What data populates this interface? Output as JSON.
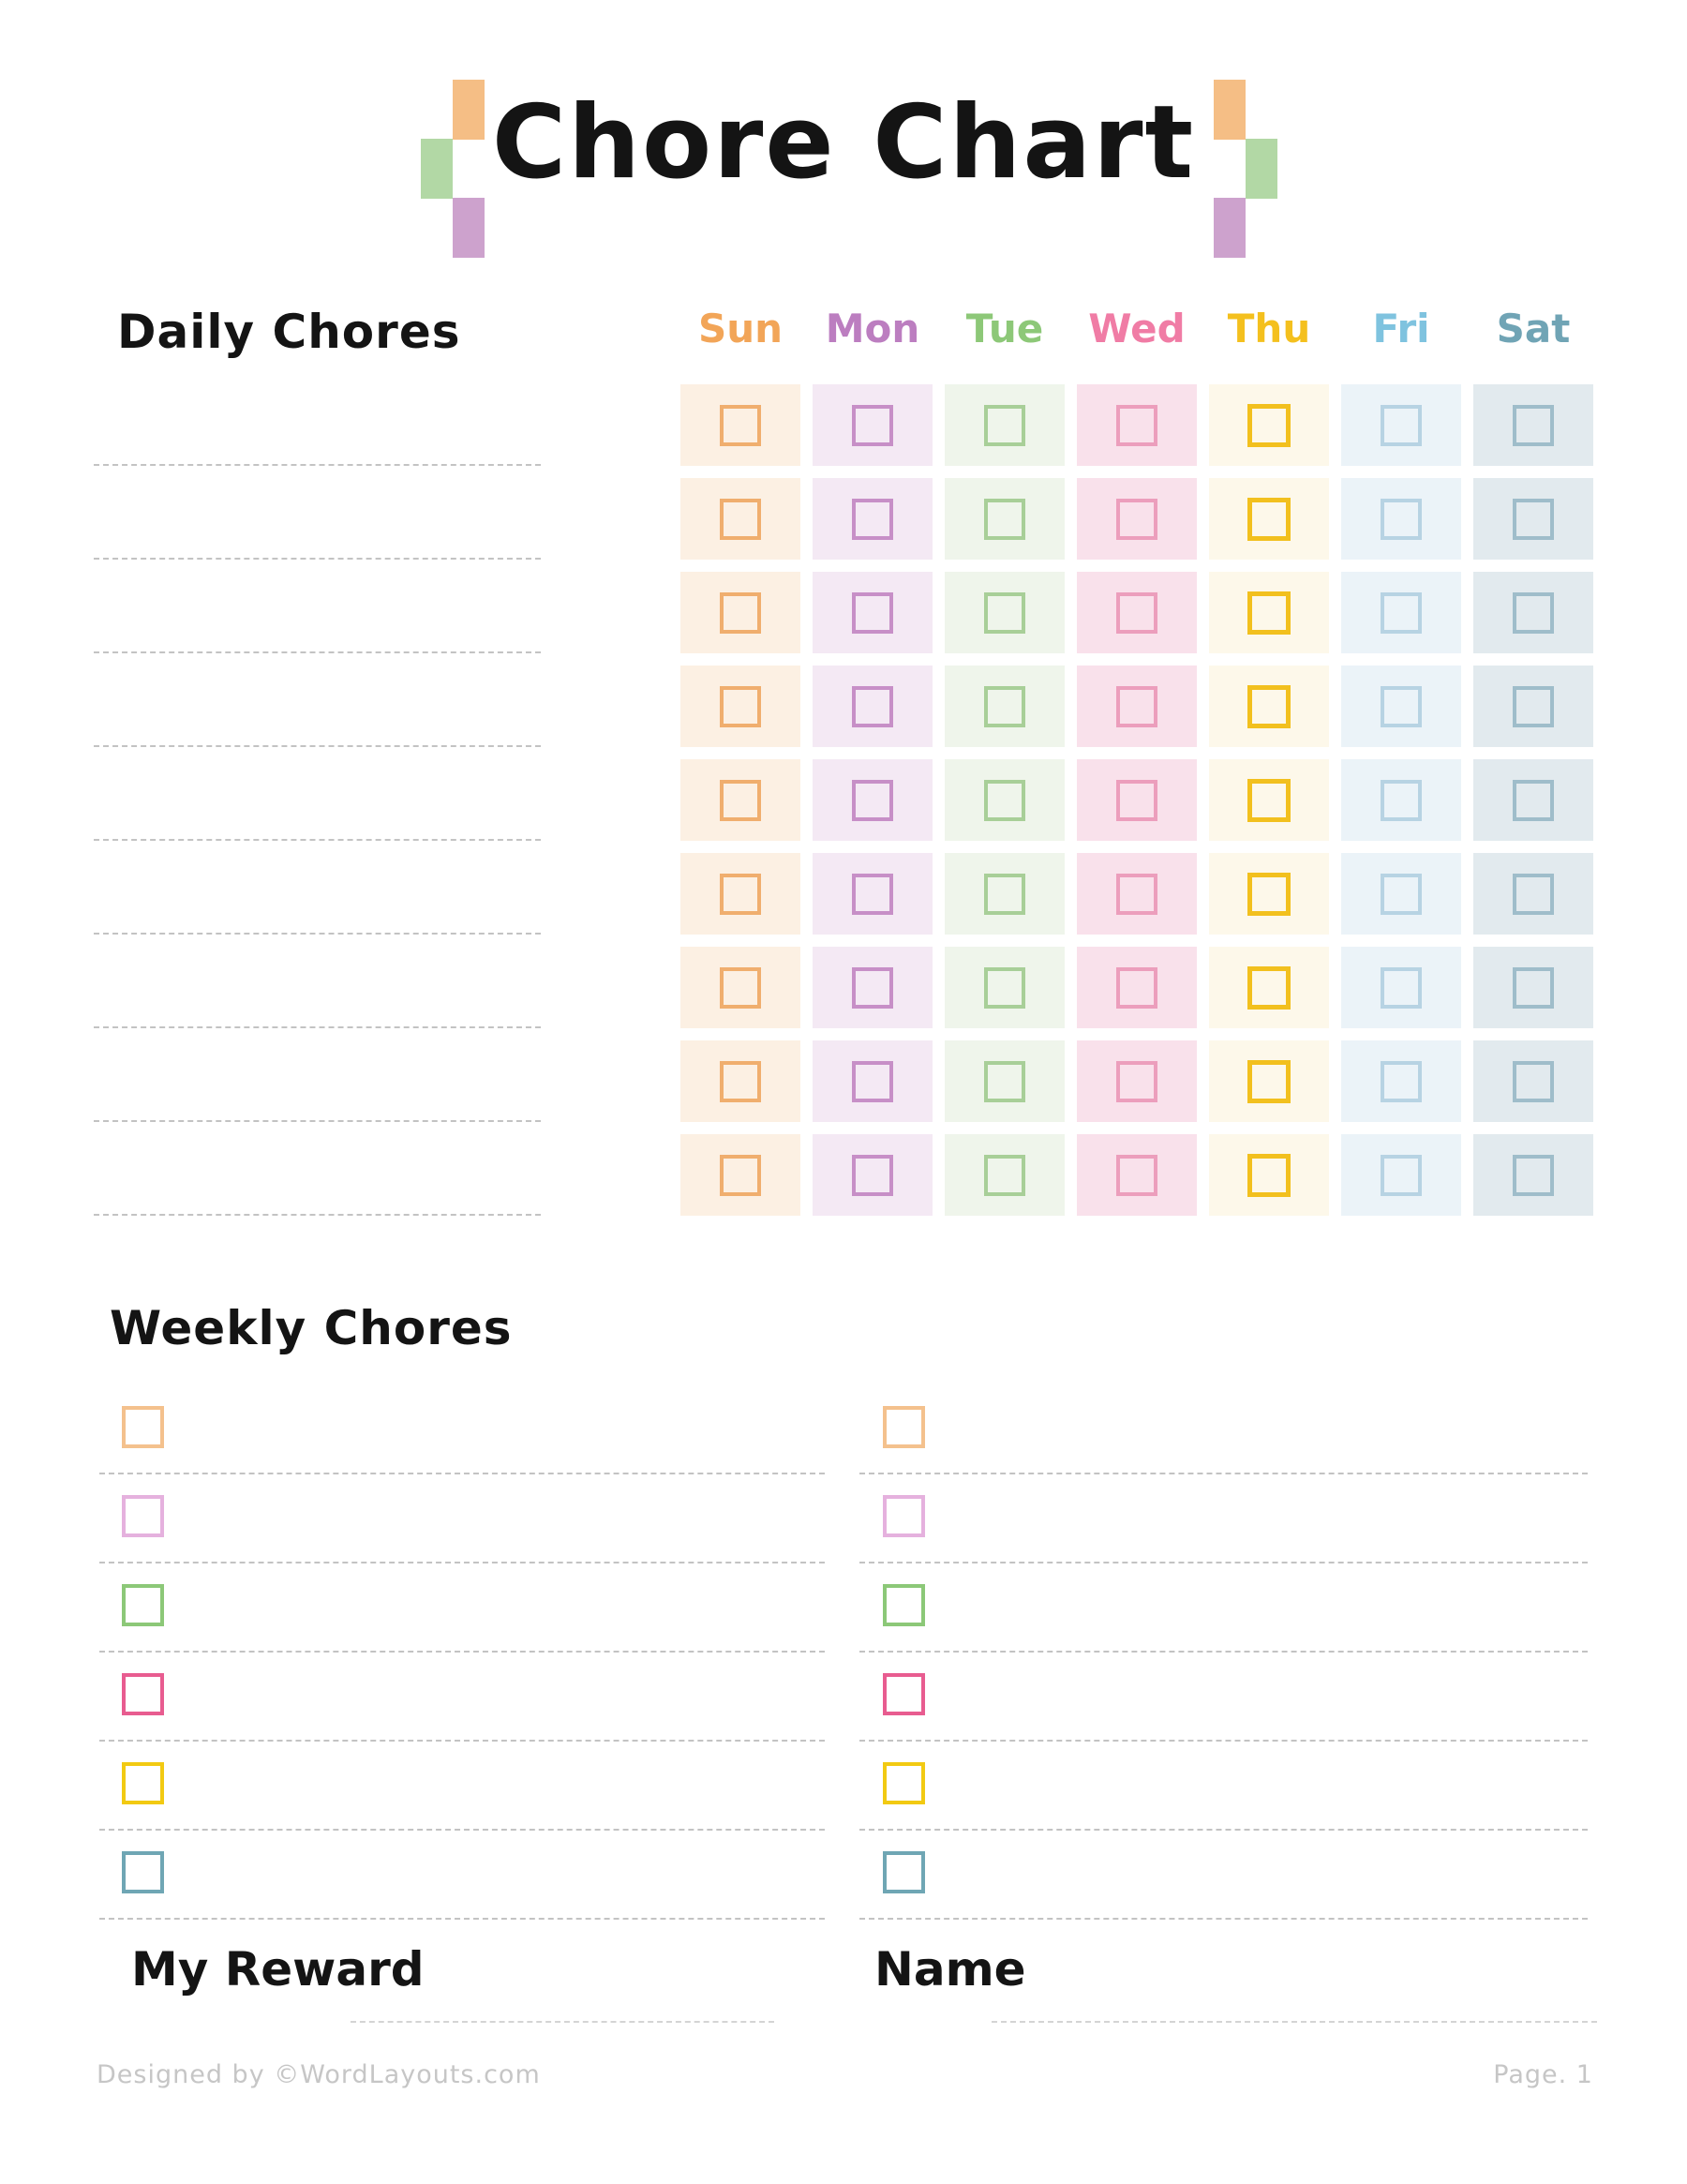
{
  "page": {
    "title": "Chore Chart"
  },
  "decoration": {
    "colors": {
      "orange": "#F5BE85",
      "green": "#B2D8A5",
      "purple": "#CDA2CD"
    }
  },
  "daily": {
    "heading": "Daily Chores",
    "rows": 9,
    "line_count": 9,
    "days": [
      {
        "label": "Sun",
        "color": "#F2A558",
        "cell_bg": "#FCF0E3",
        "box_border": "#F0AE6E",
        "thick": false
      },
      {
        "label": "Mon",
        "color": "#BC7EC0",
        "cell_bg": "#F4E9F4",
        "box_border": "#C78FC7",
        "thick": false
      },
      {
        "label": "Tue",
        "color": "#8DC878",
        "cell_bg": "#EFF5EB",
        "box_border": "#A8CF98",
        "thick": false
      },
      {
        "label": "Wed",
        "color": "#F07CA5",
        "cell_bg": "#F9E1EB",
        "box_border": "#EC9EBC",
        "thick": false
      },
      {
        "label": "Thu",
        "color": "#F4C01E",
        "cell_bg": "#FDF8EA",
        "box_border": "#F2C01E",
        "thick": true
      },
      {
        "label": "Fri",
        "color": "#7FC3DF",
        "cell_bg": "#EBF3F8",
        "box_border": "#B7D3E3",
        "thick": false
      },
      {
        "label": "Sat",
        "color": "#70A4B5",
        "cell_bg": "#E2EAEE",
        "box_border": "#9FBDCA",
        "thick": false
      }
    ]
  },
  "weekly": {
    "heading": "Weekly Chores",
    "columns": 2,
    "items_per_column": 6,
    "box_colors": [
      "#F4C18D",
      "#E5B1DE",
      "#8CC878",
      "#E85C90",
      "#F2CA12",
      "#6FA6B4"
    ]
  },
  "reward": {
    "label": "My Reward"
  },
  "name": {
    "label": "Name"
  },
  "footer": {
    "credit": "Designed by ©WordLayouts.com",
    "page": "Page. 1"
  }
}
